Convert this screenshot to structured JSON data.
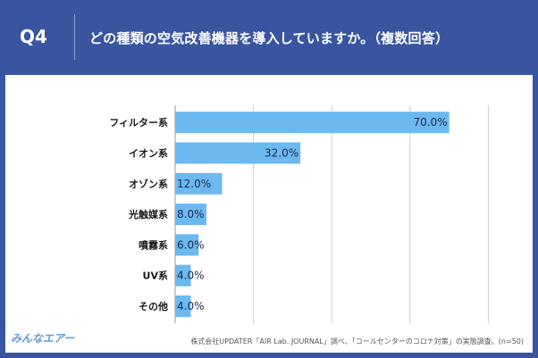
{
  "header": {
    "q_label": "Q4",
    "question": "どの種類の空気改善機器を導入していますか。（複数回答）"
  },
  "footer": {
    "logo": "みんなエアー",
    "source": "株式会社UPDATER「AIR Lab. JOURNAL」調べ、「コールセンターのコロナ対策」の実態調査。(n=50)"
  },
  "colors": {
    "background": "#3a55a0",
    "bar": "#6cb8f0",
    "grid": "#cccccc",
    "text": "#1a1a1a"
  },
  "chart_data": {
    "type": "bar",
    "orientation": "horizontal",
    "categories": [
      "フィルター系",
      "イオン系",
      "オゾン系",
      "光触媒系",
      "噴霧系",
      "UV系",
      "その他"
    ],
    "values": [
      70.0,
      32.0,
      12.0,
      8.0,
      6.0,
      4.0,
      4.0
    ],
    "value_labels": [
      "70.0%",
      "32.0%",
      "12.0%",
      "8.0%",
      "6.0%",
      "4.0%",
      "4.0%"
    ],
    "xlim": [
      0,
      100
    ],
    "grid": true,
    "title": "",
    "xlabel": "",
    "ylabel": ""
  }
}
